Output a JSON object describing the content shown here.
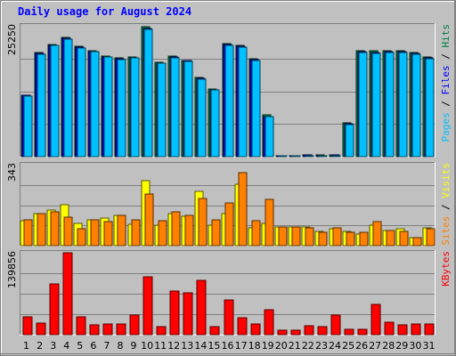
{
  "chart_data": {
    "type": "bar",
    "title": "Daily usage for August 2024",
    "x": [
      "1",
      "2",
      "3",
      "4",
      "5",
      "6",
      "7",
      "8",
      "9",
      "10",
      "11",
      "12",
      "13",
      "14",
      "15",
      "16",
      "17",
      "18",
      "19",
      "20",
      "21",
      "22",
      "23",
      "24",
      "25",
      "26",
      "27",
      "28",
      "29",
      "30",
      "31"
    ],
    "weekend_days": [
      "3",
      "4",
      "10",
      "11",
      "17",
      "18",
      "24",
      "25",
      "31"
    ],
    "weekend_color": "#008040",
    "panels": [
      {
        "name": "hits-panel",
        "ymax_label": "25250",
        "ymax": 25250,
        "legend": [
          {
            "text": "Pages",
            "color": "#00c0ff"
          },
          {
            "text": " / ",
            "color": "#000000"
          },
          {
            "text": "Files",
            "color": "#0000ff"
          },
          {
            "text": " / ",
            "color": "#000000"
          },
          {
            "text": "Hits",
            "color": "#008040"
          }
        ],
        "series": [
          {
            "name": "Hits",
            "color": "#008040",
            "values": [
              11900,
              20100,
              21700,
              23000,
              21300,
              20400,
              19400,
              19000,
              19200,
              25000,
              18200,
              19400,
              18600,
              15300,
              13100,
              21800,
              21500,
              18900,
              8000,
              150,
              150,
              350,
              300,
              350,
              6600,
              20500,
              20400,
              20500,
              20500,
              20100,
              19300
            ]
          },
          {
            "name": "Files",
            "color": "#0000ff",
            "values": [
              11800,
              19900,
              21500,
              22800,
              21100,
              20300,
              19300,
              18900,
              19100,
              24800,
              18100,
              19300,
              18500,
              15100,
              12900,
              21600,
              21300,
              18700,
              7800,
              120,
              120,
              300,
              250,
              300,
              6400,
              20300,
              20100,
              20300,
              20300,
              19900,
              19100
            ]
          },
          {
            "name": "Pages",
            "color": "#00c0ff",
            "values": [
              11700,
              19800,
              21400,
              22600,
              20900,
              20200,
              19200,
              18800,
              19000,
              24600,
              18000,
              19100,
              18300,
              14900,
              12800,
              21400,
              21100,
              18500,
              7700,
              100,
              100,
              250,
              200,
              250,
              6200,
              20100,
              19900,
              20100,
              20100,
              19700,
              18900
            ]
          }
        ]
      },
      {
        "name": "visits-panel",
        "ymax_label": "343",
        "ymax": 343,
        "legend": [
          {
            "text": "Sites",
            "color": "#ff8000"
          },
          {
            "text": " / ",
            "color": "#000000"
          },
          {
            "text": "Visits",
            "color": "#ffff00"
          }
        ],
        "series": [
          {
            "name": "Visits",
            "color": "#ffff00",
            "values": [
              105,
              135,
              150,
              175,
              95,
              110,
              115,
              130,
              90,
              275,
              85,
              135,
              125,
              230,
              85,
              135,
              260,
              75,
              95,
              80,
              80,
              80,
              60,
              70,
              60,
              50,
              85,
              65,
              70,
              35,
              75
            ]
          },
          {
            "name": "Sites",
            "color": "#ff8000",
            "values": [
              110,
              135,
              145,
              120,
              70,
              110,
              100,
              130,
              110,
              220,
              105,
              145,
              130,
              200,
              110,
              180,
              310,
              105,
              195,
              80,
              80,
              75,
              55,
              75,
              55,
              55,
              100,
              65,
              60,
              35,
              70
            ]
          }
        ]
      },
      {
        "name": "kbytes-panel",
        "ymax_label": "139856",
        "ymax": 139856,
        "legend": [
          {
            "text": "KBytes",
            "color": "#ff0000"
          }
        ],
        "series": [
          {
            "name": "KBytes",
            "color": "#ff0000",
            "values": [
              31000,
              20000,
              86000,
              139856,
              31000,
              16000,
              19000,
              18000,
              33000,
              99000,
              13000,
              75000,
              72000,
              92000,
              13000,
              60000,
              29000,
              19000,
              42000,
              8000,
              8000,
              15000,
              14000,
              33000,
              9000,
              9000,
              51000,
              21000,
              16000,
              18000,
              18000
            ]
          }
        ]
      }
    ]
  }
}
